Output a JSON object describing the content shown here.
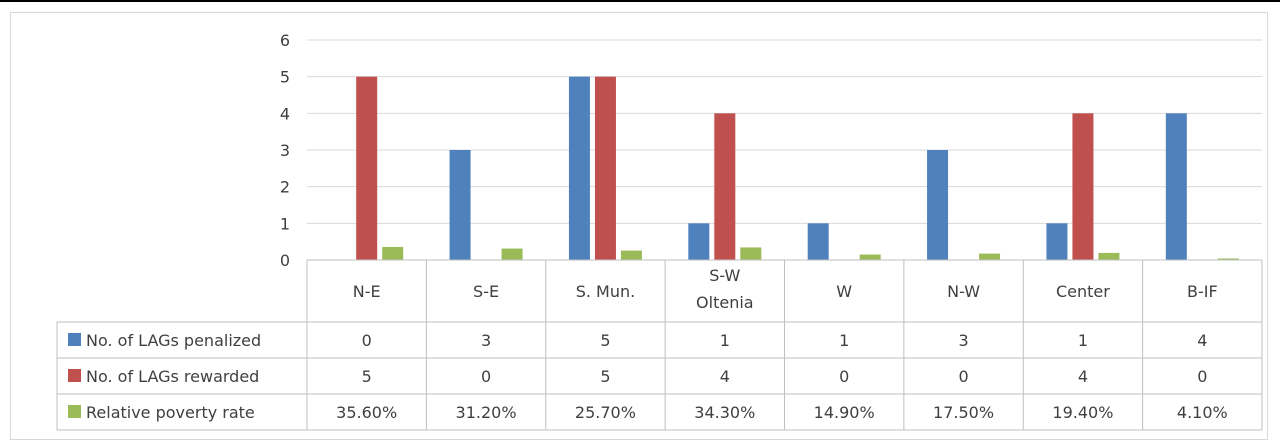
{
  "chart_data": {
    "type": "bar",
    "categories": [
      [
        "N-E"
      ],
      [
        "S-E"
      ],
      [
        "S. Mun."
      ],
      [
        "S-W",
        "Oltenia"
      ],
      [
        "W"
      ],
      [
        "N-W"
      ],
      [
        "Center"
      ],
      [
        "B-IF"
      ]
    ],
    "ylim": [
      0,
      6
    ],
    "yticks": [
      "0",
      "1",
      "2",
      "3",
      "4",
      "5",
      "6"
    ],
    "grid": true,
    "legend": "data-table",
    "series": [
      {
        "name": "No. of LAGs penalized",
        "color": "#4f81bd",
        "values": [
          0,
          3,
          5,
          1,
          1,
          3,
          1,
          4
        ],
        "table": [
          "0",
          "3",
          "5",
          "1",
          "1",
          "3",
          "1",
          "4"
        ]
      },
      {
        "name": "No. of LAGs rewarded",
        "color": "#c0504d",
        "values": [
          5,
          0,
          5,
          4,
          0,
          0,
          4,
          0
        ],
        "table": [
          "5",
          "0",
          "5",
          "4",
          "0",
          "0",
          "4",
          "0"
        ]
      },
      {
        "name": "Relative poverty rate",
        "color": "#9bbb59",
        "values": [
          0.356,
          0.312,
          0.257,
          0.343,
          0.149,
          0.175,
          0.194,
          0.041
        ],
        "table": [
          "35.60%",
          "31.20%",
          "25.70%",
          "34.30%",
          "14.90%",
          "17.50%",
          "19.40%",
          "4.10%"
        ]
      }
    ]
  }
}
